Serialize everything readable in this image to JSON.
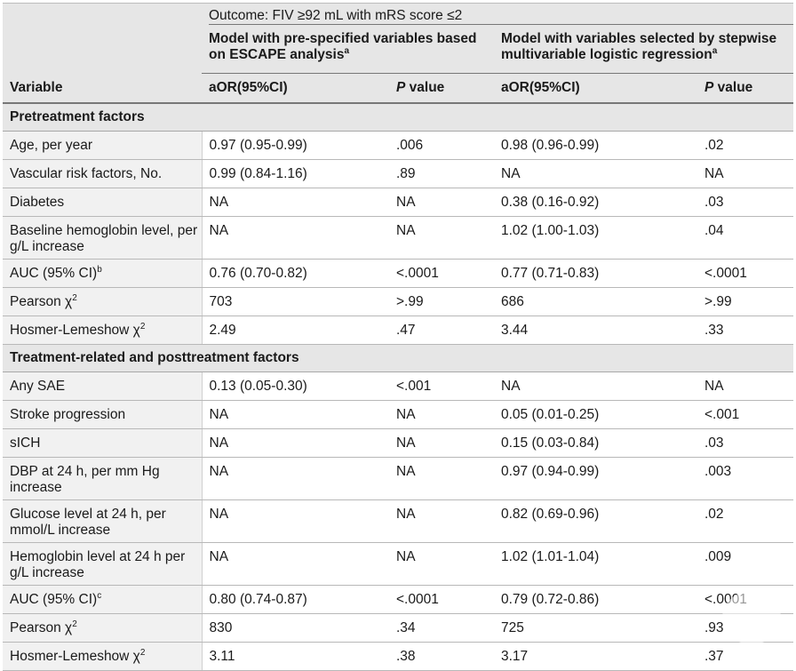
{
  "header": {
    "outcome": "Outcome: FIV ≥92 mL with mRS score ≤2",
    "model1": "Model with pre-specified variables based on ESCAPE analysis",
    "model1_sup": "a",
    "model2": "Model with variables selected by stepwise multivariable logistic regression",
    "model2_sup": "a",
    "variable": "Variable",
    "aor1": "aOR(95%CI)",
    "p1_italic": "P",
    "p1_rest": " value",
    "aor2": "aOR(95%CI)",
    "p2_italic": "P",
    "p2_rest": " value"
  },
  "sections": [
    {
      "title": "Pretreatment factors",
      "rows": [
        {
          "var": "Age, per year",
          "sup": "",
          "a1": "0.97 (0.95-0.99)",
          "p1": ".006",
          "a2": "0.98 (0.96-0.99)",
          "p2": ".02"
        },
        {
          "var": "Vascular risk factors, No.",
          "sup": "",
          "a1": "0.99 (0.84-1.16)",
          "p1": ".89",
          "a2": "NA",
          "p2": "NA"
        },
        {
          "var": "Diabetes",
          "sup": "",
          "a1": "NA",
          "p1": "NA",
          "a2": "0.38 (0.16-0.92)",
          "p2": ".03"
        },
        {
          "var": "Baseline hemoglobin level, per g/L increase",
          "sup": "",
          "a1": "NA",
          "p1": "NA",
          "a2": "1.02 (1.00-1.03)",
          "p2": ".04"
        },
        {
          "var": "AUC (95% CI)",
          "sup": "b",
          "a1": "0.76 (0.70-0.82)",
          "p1": "<.0001",
          "a2": "0.77 (0.71-0.83)",
          "p2": "<.0001"
        },
        {
          "var": "Pearson χ",
          "sup": "2",
          "a1": "703",
          "p1": ">.99",
          "a2": "686",
          "p2": ">.99"
        },
        {
          "var": "Hosmer-Lemeshow χ",
          "sup": "2",
          "a1": "2.49",
          "p1": ".47",
          "a2": "3.44",
          "p2": ".33"
        }
      ]
    },
    {
      "title": "Treatment-related and posttreatment factors",
      "rows": [
        {
          "var": "Any SAE",
          "sup": "",
          "a1": "0.13 (0.05-0.30)",
          "p1": "<.001",
          "a2": "NA",
          "p2": "NA"
        },
        {
          "var": "Stroke progression",
          "sup": "",
          "a1": "NA",
          "p1": "NA",
          "a2": "0.05 (0.01-0.25)",
          "p2": "<.001"
        },
        {
          "var": "sICH",
          "sup": "",
          "a1": "NA",
          "p1": "NA",
          "a2": "0.15 (0.03-0.84)",
          "p2": ".03"
        },
        {
          "var": "DBP at 24 h, per mm Hg increase",
          "sup": "",
          "a1": "NA",
          "p1": "NA",
          "a2": "0.97 (0.94-0.99)",
          "p2": ".003"
        },
        {
          "var": "Glucose level at 24 h, per mmol/L increase",
          "sup": "",
          "a1": "NA",
          "p1": "NA",
          "a2": "0.82 (0.69-0.96)",
          "p2": ".02"
        },
        {
          "var": "Hemoglobin level at 24 h per g/L increase",
          "sup": "",
          "a1": "NA",
          "p1": "NA",
          "a2": "1.02 (1.01-1.04)",
          "p2": ".009"
        },
        {
          "var": "AUC (95% CI)",
          "sup": "c",
          "a1": "0.80 (0.74-0.87)",
          "p1": "<.0001",
          "a2": "0.79 (0.72-0.86)",
          "p2": "<.0001"
        },
        {
          "var": "Pearson χ",
          "sup": "2",
          "a1": "830",
          "p1": ".34",
          "a2": "725",
          "p2": ".93"
        },
        {
          "var": "Hosmer-Lemeshow χ",
          "sup": "2",
          "a1": "3.11",
          "p1": ".38",
          "a2": "3.17",
          "p2": ".37"
        }
      ]
    }
  ]
}
